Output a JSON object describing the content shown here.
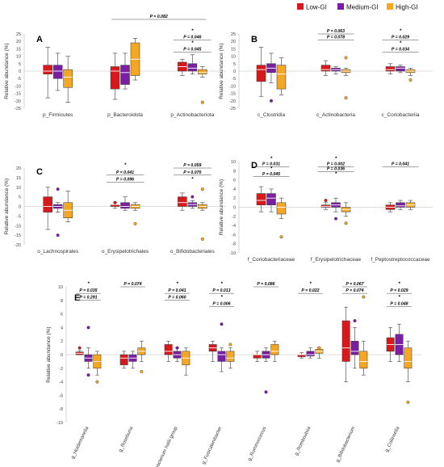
{
  "legend": [
    {
      "label": "Low-GI",
      "color": "#d7191c"
    },
    {
      "label": "Medium-GI",
      "color": "#7b1fa2"
    },
    {
      "label": "High-GI",
      "color": "#f5a623"
    }
  ],
  "chart_data": [
    {
      "type": "boxplot",
      "panel": "A",
      "ylabel": "Relative abundance (%)",
      "ylim": [
        -25,
        25
      ],
      "yticks": [
        -25,
        -20,
        -15,
        -10,
        -5,
        0,
        5,
        10,
        15,
        20,
        25
      ],
      "grid": false,
      "legend_position": "top-right",
      "categories": [
        "p_Firmicutes",
        "p_Bacteroidota",
        "p_Actinobacteriota"
      ],
      "boxes": [
        [
          {
            "min": -18,
            "q1": -2,
            "median": 0,
            "q3": 4,
            "max": 16
          },
          {
            "min": -13,
            "q1": -5,
            "median": 0,
            "q3": 4,
            "max": 12
          },
          {
            "min": -21,
            "q1": -11,
            "median": -4,
            "q3": 1,
            "max": 10
          }
        ],
        [
          {
            "min": -19,
            "q1": -12,
            "median": 0,
            "q3": 3,
            "max": 12
          },
          {
            "min": -12,
            "q1": -9,
            "median": -1,
            "q3": 4,
            "max": 12
          },
          {
            "min": -6,
            "q1": -3,
            "median": 8,
            "q3": 19,
            "max": 22
          }
        ],
        [
          {
            "min": -3,
            "q1": 0,
            "median": 3,
            "q3": 6,
            "max": 8
          },
          {
            "min": -2,
            "q1": 0,
            "median": 2,
            "q3": 5,
            "max": 11
          },
          {
            "min": -4,
            "q1": -2,
            "median": -1,
            "q3": 1,
            "max": 3,
            "outliers": [
              -21
            ]
          }
        ]
      ],
      "annotations": [
        {
          "text": "P = 0.082",
          "from": 1,
          "to": 2,
          "level": 0
        },
        {
          "text": "*",
          "from": 2,
          "to": 2,
          "level": 0
        },
        {
          "text": "P = 0.046",
          "from": 2,
          "to": 2,
          "level": 1
        },
        {
          "text": "*",
          "from": 2,
          "to": 2,
          "level": 2
        },
        {
          "text": "P = 0.045",
          "from": 2,
          "to": 2,
          "level": 3
        }
      ]
    },
    {
      "type": "boxplot",
      "panel": "B",
      "ylabel": "Relative abundance (%)",
      "ylim": [
        -25,
        25
      ],
      "yticks": [
        -25,
        -20,
        -15,
        -10,
        -5,
        0,
        5,
        10,
        15,
        20,
        25
      ],
      "grid": false,
      "categories": [
        "c_Clostridia",
        "c_Actinobacteria",
        "c_Coriobacteriia"
      ],
      "boxes": [
        [
          {
            "min": -17,
            "q1": -7,
            "median": 1,
            "q3": 4,
            "max": 16
          },
          {
            "min": -8,
            "q1": -1,
            "median": 2,
            "q3": 5,
            "max": 12,
            "outliers": [
              -20
            ]
          },
          {
            "min": -16,
            "q1": -12,
            "median": -2,
            "q3": 4,
            "max": 9
          }
        ],
        [
          {
            "min": -3,
            "q1": 0,
            "median": 1,
            "q3": 4,
            "max": 7
          },
          {
            "min": -2,
            "q1": 0,
            "median": 1,
            "q3": 2,
            "max": 3
          },
          {
            "min": -3,
            "q1": -1,
            "median": 0,
            "q3": 1,
            "max": 2,
            "outliers": [
              -18,
              9
            ]
          }
        ],
        [
          {
            "min": -2,
            "q1": 0,
            "median": 1,
            "q3": 3,
            "max": 5
          },
          {
            "min": -1,
            "q1": 0,
            "median": 2,
            "q3": 3,
            "max": 4
          },
          {
            "min": -3,
            "q1": -1,
            "median": 0,
            "q3": 1,
            "max": 2,
            "outliers": [
              -6
            ]
          }
        ]
      ],
      "annotations": [
        {
          "text": "P = 0.063",
          "from": 1,
          "to": 1,
          "level": 0
        },
        {
          "text": "P = 0.078",
          "from": 1,
          "to": 1,
          "level": 1
        },
        {
          "text": "*",
          "from": 2,
          "to": 2,
          "level": 0
        },
        {
          "text": "P = 0.029",
          "from": 2,
          "to": 2,
          "level": 1
        },
        {
          "text": "*",
          "from": 2,
          "to": 2,
          "level": 2
        },
        {
          "text": "P = 0.034",
          "from": 2,
          "to": 2,
          "level": 3
        }
      ]
    },
    {
      "type": "boxplot",
      "panel": "C",
      "ylabel": "Relative abundance (%)",
      "ylim": [
        -20,
        20
      ],
      "yticks": [
        -20,
        -15,
        -10,
        -5,
        0,
        5,
        10,
        15,
        20
      ],
      "grid": false,
      "categories": [
        "o_Lachnospirales",
        "o_Erysipelotrichales",
        "o_Bifidobacteriales"
      ],
      "boxes": [
        [
          {
            "min": -12,
            "q1": -3,
            "median": 0,
            "q3": 5,
            "max": 10
          },
          {
            "min": -3,
            "q1": -1,
            "median": 0,
            "q3": 1,
            "max": 2,
            "outliers": [
              -15,
              9
            ]
          },
          {
            "min": -8,
            "q1": -6,
            "median": -2,
            "q3": 2,
            "max": 8
          }
        ],
        [
          {
            "min": -1,
            "q1": 0,
            "median": 1,
            "q3": 1,
            "max": 2,
            "outliers": [
              2
            ]
          },
          {
            "min": -2,
            "q1": -1,
            "median": 0,
            "q3": 2,
            "max": 5
          },
          {
            "min": -2,
            "q1": -1,
            "median": 0,
            "q3": 1,
            "max": 2,
            "outliers": [
              -9
            ]
          }
        ],
        [
          {
            "min": -2,
            "q1": 0,
            "median": 2,
            "q3": 5,
            "max": 7
          },
          {
            "min": -1,
            "q1": 0,
            "median": 1,
            "q3": 2,
            "max": 3,
            "outliers": [
              5
            ]
          },
          {
            "min": -2,
            "q1": -1,
            "median": 0,
            "q3": 1,
            "max": 2,
            "outliers": [
              -17,
              9
            ]
          }
        ]
      ],
      "annotations": [
        {
          "text": "*",
          "from": 1,
          "to": 1,
          "level": 0
        },
        {
          "text": "P = 0.041",
          "from": 1,
          "to": 1,
          "level": 1
        },
        {
          "text": "P = 0.096",
          "from": 1,
          "to": 1,
          "level": 2
        },
        {
          "text": "P = 0.059",
          "from": 2,
          "to": 2,
          "level": 0
        },
        {
          "text": "P = 0.070",
          "from": 2,
          "to": 2,
          "level": 1
        },
        {
          "text": "*",
          "from": 2,
          "to": 2,
          "level": 2
        }
      ]
    },
    {
      "type": "boxplot",
      "panel": "D",
      "ylabel": "Relative abundance (%)",
      "ylim": [
        -10,
        10
      ],
      "yticks": [
        -10,
        -8,
        -6,
        -4,
        -2,
        0,
        2,
        4,
        6,
        8,
        10
      ],
      "grid": false,
      "categories": [
        "f_Coriobacteriaceae",
        "f_Erysipelotrichaceae",
        "f_Peptostreptococcaceae"
      ],
      "boxes": [
        [
          {
            "min": -1,
            "q1": 0.5,
            "median": 1.5,
            "q3": 3,
            "max": 4.5
          },
          {
            "min": -1,
            "q1": 0.5,
            "median": 2,
            "q3": 3,
            "max": 4
          },
          {
            "min": -2.5,
            "q1": -1.5,
            "median": 0,
            "q3": 1,
            "max": 2,
            "outliers": [
              -6.5
            ]
          }
        ],
        [
          {
            "min": -0.5,
            "q1": 0,
            "median": 0.2,
            "q3": 0.5,
            "max": 1,
            "outliers": [
              1.5
            ]
          },
          {
            "min": -1,
            "q1": 0,
            "median": 0.5,
            "q3": 1,
            "max": 2,
            "outliers": [
              -2.5
            ]
          },
          {
            "min": -2,
            "q1": -1,
            "median": -0.5,
            "q3": 0,
            "max": 1,
            "outliers": [
              -3.5
            ]
          }
        ],
        [
          {
            "min": -1,
            "q1": -0.5,
            "median": 0,
            "q3": 0.5,
            "max": 1
          },
          {
            "min": -0.5,
            "q1": 0,
            "median": 0.3,
            "q3": 1,
            "max": 1.5
          },
          {
            "min": -0.5,
            "q1": 0,
            "median": 0.5,
            "q3": 1,
            "max": 1.5
          }
        ]
      ],
      "annotations": [
        {
          "text": "*",
          "from": 0,
          "to": 0,
          "level": 0
        },
        {
          "text": "P = 0.031",
          "from": 0,
          "to": 0,
          "level": 1
        },
        {
          "text": "*",
          "from": 0,
          "to": 0,
          "level": 2
        },
        {
          "text": "P = 0.045",
          "from": 0,
          "to": 0,
          "level": 3
        },
        {
          "text": "*",
          "from": 1,
          "to": 1,
          "level": 0
        },
        {
          "text": "P = 0.002",
          "from": 1,
          "to": 1,
          "level": 1
        },
        {
          "text": "P = 0.036",
          "from": 1,
          "to": 1,
          "level": 2
        },
        {
          "text": "*",
          "from": 1,
          "to": 1,
          "level": 3
        },
        {
          "text": "P = 0.041",
          "from": 2,
          "to": 2,
          "level": 1
        }
      ]
    },
    {
      "type": "boxplot",
      "panel": "E",
      "ylabel": "Relative abundance (%)",
      "ylim": [
        -10,
        10
      ],
      "yticks": [
        -10,
        -8,
        -6,
        -4,
        -2,
        0,
        2,
        4,
        6,
        8,
        10
      ],
      "grid": false,
      "categories": [
        "g_Holdemanella",
        "g_Roseburia",
        "g_Eubacterium hallii group",
        "g_Fusicatenibacter",
        "g_Ruminococcus",
        "g_Romboutsia",
        "g_Bifidobacterium",
        "g_Collinsella"
      ],
      "boxes": [
        [
          {
            "min": 0,
            "q1": 0,
            "median": 0.2,
            "q3": 0.4,
            "max": 0.6,
            "outliers": [
              1
            ]
          },
          {
            "min": -2,
            "q1": -1,
            "median": -0.5,
            "q3": 0,
            "max": 1,
            "outliers": [
              -3,
              4
            ]
          },
          {
            "min": -3,
            "q1": -2,
            "median": -1,
            "q3": 0,
            "max": 0.5,
            "outliers": [
              -4
            ]
          }
        ],
        [
          {
            "min": -2,
            "q1": -1.5,
            "median": -0.5,
            "q3": 0,
            "max": 0.5
          },
          {
            "min": -2,
            "q1": -1,
            "median": -0.5,
            "q3": 0,
            "max": 0.5
          },
          {
            "min": -1,
            "q1": 0,
            "median": 0.5,
            "q3": 1,
            "max": 2,
            "outliers": [
              -2.5
            ]
          }
        ],
        [
          {
            "min": -1,
            "q1": 0,
            "median": 0.5,
            "q3": 1.5,
            "max": 2
          },
          {
            "min": -1,
            "q1": -0.5,
            "median": 0,
            "q3": 0.5,
            "max": 1,
            "outliers": [
              1
            ]
          },
          {
            "min": -3,
            "q1": -1.5,
            "median": -0.5,
            "q3": 0.5,
            "max": 1
          }
        ],
        [
          {
            "min": -1,
            "q1": 0.5,
            "median": 1,
            "q3": 1.5,
            "max": 2
          },
          {
            "min": -2.5,
            "q1": -1,
            "median": 0,
            "q3": 0.5,
            "max": 1,
            "outliers": [
              4.5
            ]
          },
          {
            "min": -2,
            "q1": -1,
            "median": -0.5,
            "q3": 0.5,
            "max": 1,
            "outliers": [
              1.5
            ]
          }
        ],
        [
          {
            "min": -1,
            "q1": -0.5,
            "median": 0,
            "q3": 0,
            "max": 0.5
          },
          {
            "min": -1,
            "q1": -0.5,
            "median": 0,
            "q3": 0.5,
            "max": 1,
            "outliers": [
              -5.5
            ]
          },
          {
            "min": -1,
            "q1": 0,
            "median": 0.5,
            "q3": 1.5,
            "max": 2
          }
        ],
        [
          {
            "min": -0.5,
            "q1": -0.3,
            "median": 0,
            "q3": 0,
            "max": 0.3
          },
          {
            "min": -0.5,
            "q1": -0.2,
            "median": 0,
            "q3": 0.5,
            "max": 1
          },
          {
            "min": -0.5,
            "q1": 0.2,
            "median": 0.5,
            "q3": 0.8,
            "max": 1,
            "outliers": [
              1
            ]
          }
        ],
        [
          {
            "min": -4,
            "q1": -1,
            "median": 1,
            "q3": 5,
            "max": 7
          },
          {
            "min": -2,
            "q1": 0,
            "median": 0.5,
            "q3": 2,
            "max": 4,
            "outliers": [
              5
            ]
          },
          {
            "min": -3,
            "q1": -2,
            "median": -1,
            "q3": 0.5,
            "max": 2,
            "outliers": [
              8.5
            ]
          }
        ],
        [
          {
            "min": -1,
            "q1": 0.5,
            "median": 1.5,
            "q3": 2.5,
            "max": 4
          },
          {
            "min": -1,
            "q1": 0,
            "median": 1.5,
            "q3": 3,
            "max": 4.5
          },
          {
            "min": -4,
            "q1": -2,
            "median": -1,
            "q3": 1,
            "max": 2,
            "outliers": [
              -7
            ]
          }
        ]
      ],
      "annotations": [
        {
          "text": "*",
          "from": 0,
          "to": 0,
          "level": 0
        },
        {
          "text": "P = 0.035",
          "from": 0,
          "to": 0,
          "level": 1
        },
        {
          "text": "P = 0.291",
          "from": 0,
          "to": 0,
          "level": 2
        },
        {
          "text": "P = 0.074",
          "from": 1,
          "to": 1,
          "level": 0
        },
        {
          "text": "*",
          "from": 2,
          "to": 2,
          "level": 0
        },
        {
          "text": "P = 0.041",
          "from": 2,
          "to": 2,
          "level": 1
        },
        {
          "text": "P = 0.060",
          "from": 2,
          "to": 2,
          "level": 2
        },
        {
          "text": "*",
          "from": 3,
          "to": 3,
          "level": 0
        },
        {
          "text": "P = 0.013",
          "from": 3,
          "to": 3,
          "level": 1
        },
        {
          "text": "*",
          "from": 3,
          "to": 3,
          "level": 2
        },
        {
          "text": "P = 0.006",
          "from": 3,
          "to": 3,
          "level": 3
        },
        {
          "text": "P = 0.086",
          "from": 4,
          "to": 4,
          "level": 0
        },
        {
          "text": "*",
          "from": 5,
          "to": 5,
          "level": 0
        },
        {
          "text": "P = 0.022",
          "from": 5,
          "to": 5,
          "level": 1
        },
        {
          "text": "P = 0.067",
          "from": 6,
          "to": 6,
          "level": 0
        },
        {
          "text": "P = 0.074",
          "from": 6,
          "to": 6,
          "level": 1
        },
        {
          "text": "*",
          "from": 7,
          "to": 7,
          "level": 0
        },
        {
          "text": "P = 0.029",
          "from": 7,
          "to": 7,
          "level": 1
        },
        {
          "text": "*",
          "from": 7,
          "to": 7,
          "level": 2
        },
        {
          "text": "P = 0.048",
          "from": 7,
          "to": 7,
          "level": 3
        }
      ]
    }
  ]
}
